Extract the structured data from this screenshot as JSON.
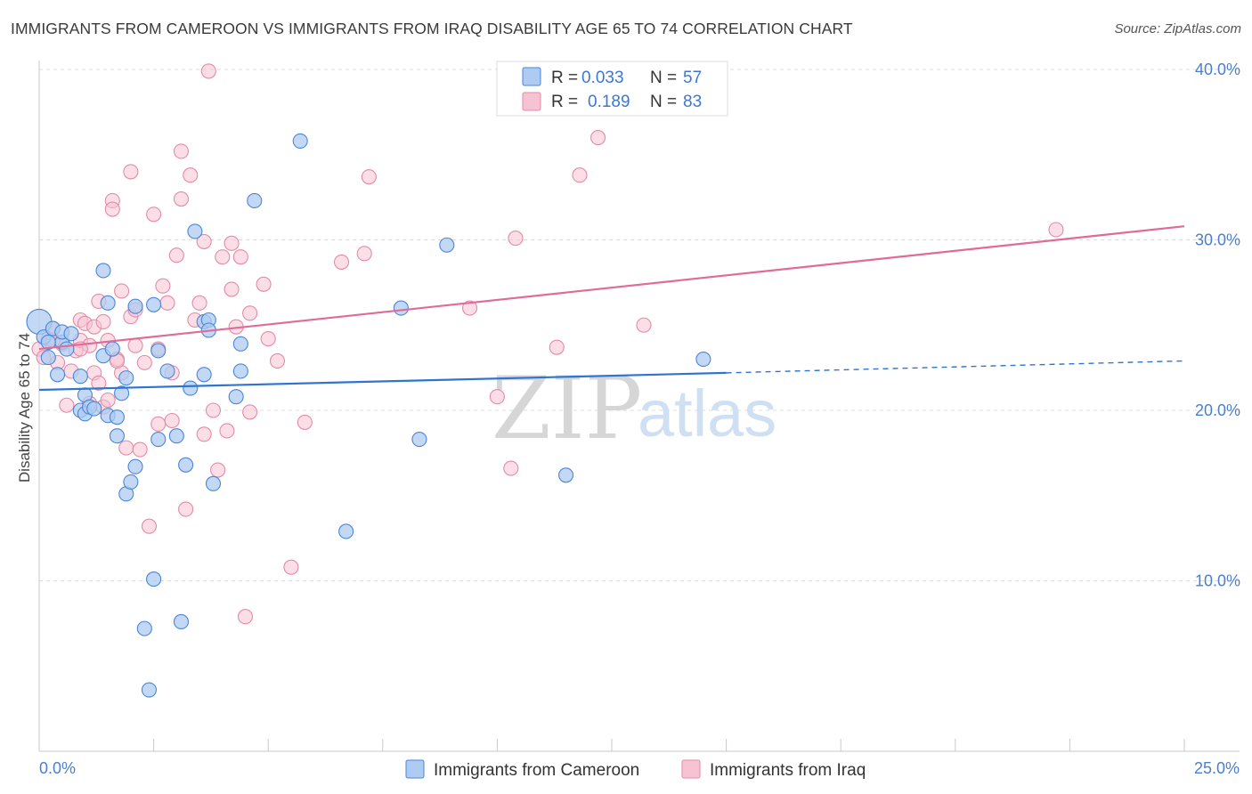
{
  "title": "IMMIGRANTS FROM CAMEROON VS IMMIGRANTS FROM IRAQ DISABILITY AGE 65 TO 74 CORRELATION CHART",
  "source": "Source: ZipAtlas.com",
  "watermark": {
    "part1": "ZIP",
    "part2": "atlas"
  },
  "colors": {
    "blue_fill": "#aecbf2",
    "blue_stroke": "#4a86d8",
    "blue_line": "#2f74d0",
    "pink_fill": "#f7c3d2",
    "pink_stroke": "#e58aa8",
    "pink_line": "#e06b96",
    "axis_text": "#4a7fd0",
    "grid": "#dddddd"
  },
  "legend": {
    "r_label": "R =",
    "n_label": "N =",
    "entries": [
      {
        "r": "0.033",
        "n": "57"
      },
      {
        "r": "0.189",
        "n": "83"
      }
    ]
  },
  "chart_data": {
    "type": "scatter",
    "title": "IMMIGRANTS FROM CAMEROON VS IMMIGRANTS FROM IRAQ DISABILITY AGE 65 TO 74 CORRELATION CHART",
    "xlabel": "",
    "ylabel": "Disability Age 65 to 74",
    "xlim": [
      0,
      25
    ],
    "ylim": [
      0,
      41.5
    ],
    "x_tick_labels": [
      "0.0%",
      "25.0%"
    ],
    "y_ticks": [
      10,
      20,
      30,
      40
    ],
    "y_tick_labels": [
      "10.0%",
      "20.0%",
      "30.0%",
      "40.0%"
    ],
    "grid": true,
    "series": [
      {
        "name": "Immigrants from Cameroon",
        "r": 0.033,
        "n": 57,
        "trend": {
          "x0": 0,
          "y0": 21.2,
          "x1": 15,
          "y1": 22.2,
          "dash_x1": 25,
          "dash_y1": 22.9
        },
        "points": [
          [
            0.0,
            25.2
          ],
          [
            0.1,
            24.3
          ],
          [
            0.2,
            23.1
          ],
          [
            0.3,
            24.8
          ],
          [
            0.4,
            22.1
          ],
          [
            0.5,
            24.0
          ],
          [
            0.5,
            24.6
          ],
          [
            0.6,
            23.6
          ],
          [
            0.9,
            22.0
          ],
          [
            0.9,
            20.0
          ],
          [
            1.0,
            19.8
          ],
          [
            1.0,
            20.9
          ],
          [
            1.1,
            20.2
          ],
          [
            1.2,
            20.1
          ],
          [
            1.4,
            23.2
          ],
          [
            1.4,
            28.2
          ],
          [
            1.5,
            26.3
          ],
          [
            1.5,
            19.7
          ],
          [
            1.6,
            23.6
          ],
          [
            1.7,
            19.6
          ],
          [
            1.7,
            18.5
          ],
          [
            1.8,
            21.0
          ],
          [
            1.9,
            15.1
          ],
          [
            1.9,
            21.9
          ],
          [
            2.0,
            15.8
          ],
          [
            2.1,
            16.7
          ],
          [
            2.1,
            26.1
          ],
          [
            2.3,
            7.2
          ],
          [
            2.4,
            3.6
          ],
          [
            2.5,
            10.1
          ],
          [
            2.5,
            26.2
          ],
          [
            2.6,
            18.3
          ],
          [
            2.6,
            23.5
          ],
          [
            2.8,
            22.3
          ],
          [
            3.0,
            18.5
          ],
          [
            3.1,
            7.6
          ],
          [
            3.2,
            16.8
          ],
          [
            3.3,
            21.3
          ],
          [
            3.4,
            30.5
          ],
          [
            3.6,
            25.2
          ],
          [
            3.6,
            22.1
          ],
          [
            3.7,
            25.3
          ],
          [
            3.7,
            24.7
          ],
          [
            3.8,
            15.7
          ],
          [
            4.3,
            20.8
          ],
          [
            4.4,
            22.3
          ],
          [
            4.4,
            23.9
          ],
          [
            4.7,
            32.3
          ],
          [
            5.7,
            35.8
          ],
          [
            6.7,
            12.9
          ],
          [
            7.9,
            26.0
          ],
          [
            8.3,
            18.3
          ],
          [
            8.9,
            29.7
          ],
          [
            11.5,
            16.2
          ],
          [
            14.5,
            23.0
          ],
          [
            0.2,
            24.0
          ],
          [
            0.7,
            24.5
          ]
        ]
      },
      {
        "name": "Immigrants from Iraq",
        "r": 0.189,
        "n": 83,
        "trend": {
          "x0": 0,
          "y0": 23.6,
          "x1": 25,
          "y1": 30.8
        },
        "points": [
          [
            0.0,
            23.6
          ],
          [
            0.1,
            23.1
          ],
          [
            0.2,
            24.2
          ],
          [
            0.3,
            24.8
          ],
          [
            0.4,
            22.8
          ],
          [
            0.5,
            23.9
          ],
          [
            0.6,
            20.3
          ],
          [
            0.7,
            22.3
          ],
          [
            0.8,
            23.5
          ],
          [
            0.9,
            24.1
          ],
          [
            0.9,
            25.3
          ],
          [
            1.0,
            25.1
          ],
          [
            1.1,
            23.8
          ],
          [
            1.1,
            20.4
          ],
          [
            1.2,
            24.9
          ],
          [
            1.2,
            22.2
          ],
          [
            1.3,
            21.6
          ],
          [
            1.3,
            26.4
          ],
          [
            1.4,
            20.2
          ],
          [
            1.5,
            20.6
          ],
          [
            1.5,
            24.1
          ],
          [
            1.6,
            32.3
          ],
          [
            1.6,
            31.8
          ],
          [
            1.7,
            23.0
          ],
          [
            1.8,
            22.2
          ],
          [
            1.8,
            27.0
          ],
          [
            1.9,
            17.8
          ],
          [
            2.0,
            34.0
          ],
          [
            2.0,
            25.5
          ],
          [
            2.1,
            25.9
          ],
          [
            2.1,
            23.8
          ],
          [
            2.2,
            17.7
          ],
          [
            2.3,
            22.8
          ],
          [
            2.4,
            13.2
          ],
          [
            2.5,
            31.5
          ],
          [
            2.6,
            23.6
          ],
          [
            2.6,
            19.2
          ],
          [
            2.7,
            27.3
          ],
          [
            2.8,
            26.3
          ],
          [
            2.9,
            22.2
          ],
          [
            3.0,
            29.1
          ],
          [
            3.1,
            35.2
          ],
          [
            3.1,
            32.4
          ],
          [
            3.2,
            14.2
          ],
          [
            3.3,
            33.8
          ],
          [
            3.4,
            25.3
          ],
          [
            3.5,
            26.3
          ],
          [
            3.6,
            29.9
          ],
          [
            3.6,
            18.6
          ],
          [
            3.7,
            39.9
          ],
          [
            3.8,
            20.0
          ],
          [
            3.9,
            16.5
          ],
          [
            4.0,
            29.0
          ],
          [
            4.1,
            18.8
          ],
          [
            4.2,
            29.8
          ],
          [
            4.2,
            27.1
          ],
          [
            4.3,
            24.9
          ],
          [
            4.4,
            29.0
          ],
          [
            4.5,
            7.9
          ],
          [
            4.6,
            25.7
          ],
          [
            4.6,
            19.9
          ],
          [
            4.9,
            27.4
          ],
          [
            5.0,
            24.2
          ],
          [
            5.2,
            22.9
          ],
          [
            5.5,
            10.8
          ],
          [
            5.8,
            19.3
          ],
          [
            6.6,
            28.7
          ],
          [
            7.1,
            29.2
          ],
          [
            7.2,
            33.7
          ],
          [
            9.4,
            26.0
          ],
          [
            10.0,
            20.8
          ],
          [
            10.3,
            16.6
          ],
          [
            10.4,
            30.1
          ],
          [
            11.3,
            23.7
          ],
          [
            11.8,
            33.8
          ],
          [
            12.2,
            36.0
          ],
          [
            13.2,
            25.0
          ],
          [
            22.2,
            30.6
          ],
          [
            1.4,
            25.2
          ],
          [
            2.9,
            19.4
          ],
          [
            0.3,
            24.1
          ],
          [
            0.9,
            23.6
          ],
          [
            1.7,
            22.9
          ]
        ]
      }
    ]
  }
}
